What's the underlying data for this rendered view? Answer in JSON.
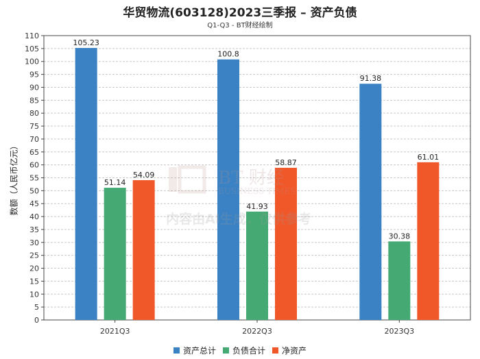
{
  "title": "华贸物流(603128)2023三季报 – 资产负债",
  "subtitle": "Q1-Q3 - BT财经绘制",
  "watermark": {
    "logo_text": "BT 财经",
    "logo_sub": "BUSINESS TIMES",
    "notice": "内容由AI生成，仅供参考"
  },
  "chart_data": {
    "type": "bar",
    "categories": [
      "2021Q3",
      "2022Q3",
      "2023Q3"
    ],
    "series": [
      {
        "name": "资产总计",
        "color": "#3a82c4",
        "values": [
          105.23,
          100.8,
          91.38
        ]
      },
      {
        "name": "负债合计",
        "color": "#45a973",
        "values": [
          51.14,
          41.93,
          30.38
        ]
      },
      {
        "name": "净资产",
        "color": "#f0582a",
        "values": [
          54.09,
          58.87,
          61.01
        ]
      }
    ],
    "ylabel": "数额（人民币亿元）",
    "ylim": [
      0,
      110
    ],
    "yticks": [
      0,
      5,
      10,
      15,
      20,
      25,
      30,
      35,
      40,
      45,
      50,
      55,
      60,
      65,
      70,
      75,
      80,
      85,
      90,
      95,
      100,
      105,
      110
    ],
    "grid": true,
    "legend_position": "bottom"
  }
}
